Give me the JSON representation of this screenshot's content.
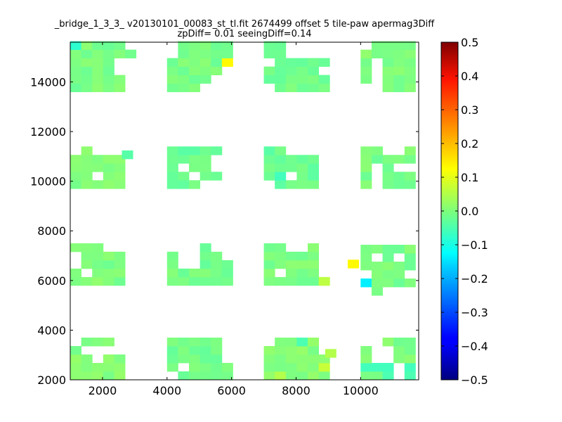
{
  "chart_data": {
    "type": "heatmap",
    "title_line1": "_bridge_1_3_3_ v20130101_00083_st_tl.fit 2674499 offset 5 tile-paw apermag3Diff",
    "title_line2": "zpDiff= 0.01 seeingDiff=0.14",
    "xlim": [
      1000,
      11800
    ],
    "ylim": [
      2000,
      15600
    ],
    "x_ticks": [
      "2000",
      "4000",
      "6000",
      "8000",
      "10000"
    ],
    "y_ticks": [
      "2000",
      "4000",
      "6000",
      "8000",
      "10000",
      "12000",
      "14000"
    ],
    "cell_size": 340,
    "colorbar": {
      "min": -0.5,
      "max": 0.5,
      "colormap": "jet",
      "ticks": [
        "0.5",
        "0.4",
        "0.3",
        "0.2",
        "0.1",
        "0.0",
        "−0.1",
        "−0.2",
        "−0.3",
        "−0.4",
        "−0.5"
      ]
    },
    "blocks": [
      {
        "x0": 1000,
        "y0": 13600,
        "cols": 6,
        "rows": 6,
        "base": -0.005,
        "missing": [
          [
            5,
            0
          ],
          [
            5,
            1
          ],
          [
            4,
            2
          ],
          [
            5,
            2
          ],
          [
            4,
            3
          ],
          [
            5,
            3
          ],
          [
            5,
            5
          ]
        ],
        "overrides": [
          [
            0,
            5,
            -0.08
          ]
        ]
      },
      {
        "x0": 4000,
        "y0": 13600,
        "cols": 6,
        "rows": 6,
        "base": -0.005,
        "missing": [
          [
            0,
            5
          ],
          [
            0,
            4
          ],
          [
            3,
            0
          ],
          [
            4,
            0
          ],
          [
            5,
            0
          ],
          [
            4,
            1
          ],
          [
            5,
            1
          ],
          [
            5,
            2
          ]
        ],
        "overrides": [
          [
            5,
            3,
            0.13
          ]
        ]
      },
      {
        "x0": 7000,
        "y0": 13600,
        "cols": 6,
        "rows": 6,
        "base": -0.01,
        "missing": [
          [
            0,
            0
          ],
          [
            2,
            5
          ],
          [
            3,
            5
          ],
          [
            4,
            5
          ],
          [
            5,
            5
          ],
          [
            2,
            4
          ],
          [
            3,
            4
          ],
          [
            4,
            4
          ],
          [
            5,
            4
          ],
          [
            0,
            3
          ],
          [
            5,
            2
          ]
        ],
        "overrides": []
      },
      {
        "x0": 10000,
        "y0": 13600,
        "cols": 5,
        "rows": 6,
        "base": 0.0,
        "missing": [
          [
            0,
            5
          ],
          [
            1,
            3
          ],
          [
            1,
            2
          ],
          [
            1,
            1
          ],
          [
            1,
            0
          ],
          [
            0,
            0
          ]
        ],
        "overrides": []
      },
      {
        "x0": 1000,
        "y0": 9700,
        "cols": 5,
        "rows": 5,
        "base": 0.0,
        "missing": [
          [
            0,
            4
          ],
          [
            2,
            4
          ],
          [
            3,
            4
          ],
          [
            2,
            1
          ],
          [
            4,
            4
          ]
        ],
        "overrides": [
          [
            4,
            4,
            -0.02
          ]
        ]
      },
      {
        "x0": 4000,
        "y0": 9700,
        "cols": 5,
        "rows": 5,
        "base": -0.02,
        "missing": [
          [
            4,
            3
          ],
          [
            4,
            2
          ],
          [
            1,
            2
          ],
          [
            2,
            1
          ],
          [
            4,
            0
          ],
          [
            3,
            0
          ]
        ],
        "overrides": []
      },
      {
        "x0": 7000,
        "y0": 9700,
        "cols": 5,
        "rows": 5,
        "base": -0.02,
        "missing": [
          [
            0,
            0
          ],
          [
            2,
            4
          ],
          [
            3,
            4
          ],
          [
            4,
            4
          ],
          [
            2,
            1
          ]
        ],
        "overrides": [
          [
            1,
            1,
            -0.06
          ]
        ]
      },
      {
        "x0": 10000,
        "y0": 9700,
        "cols": 5,
        "rows": 5,
        "base": -0.005,
        "missing": [
          [
            2,
            4
          ],
          [
            3,
            4
          ],
          [
            1,
            2
          ],
          [
            1,
            1
          ],
          [
            1,
            0
          ],
          [
            3,
            2
          ],
          [
            4,
            2
          ]
        ],
        "overrides": []
      },
      {
        "x0": 1000,
        "y0": 5800,
        "cols": 5,
        "rows": 5,
        "base": 0.0,
        "missing": [
          [
            0,
            3
          ],
          [
            0,
            2
          ],
          [
            1,
            1
          ],
          [
            3,
            4
          ],
          [
            4,
            4
          ]
        ],
        "overrides": []
      },
      {
        "x0": 4000,
        "y0": 5800,
        "cols": 6,
        "rows": 5,
        "base": -0.01,
        "missing": [
          [
            0,
            4
          ],
          [
            1,
            4
          ],
          [
            2,
            4
          ],
          [
            1,
            3
          ],
          [
            2,
            3
          ],
          [
            1,
            2
          ],
          [
            2,
            2
          ],
          [
            4,
            4
          ],
          [
            5,
            4
          ],
          [
            5,
            3
          ]
        ],
        "overrides": []
      },
      {
        "x0": 7000,
        "y0": 5800,
        "cols": 6,
        "rows": 5,
        "base": -0.005,
        "missing": [
          [
            2,
            4
          ],
          [
            3,
            4
          ],
          [
            1,
            1
          ],
          [
            5,
            4
          ],
          [
            5,
            3
          ],
          [
            5,
            2
          ],
          [
            5,
            1
          ]
        ],
        "overrides": [
          [
            5,
            0,
            0.06
          ]
        ]
      },
      {
        "x0": 10000,
        "y0": 5400,
        "cols": 5,
        "rows": 6,
        "base": -0.005,
        "missing": [
          [
            0,
            0
          ],
          [
            2,
            0
          ],
          [
            3,
            0
          ],
          [
            4,
            0
          ],
          [
            1,
            4
          ],
          [
            3,
            4
          ],
          [
            0,
            2
          ],
          [
            4,
            2
          ]
        ],
        "overrides": [
          [
            0,
            2,
            -0.07
          ],
          [
            0,
            1,
            -0.14
          ]
        ]
      },
      {
        "x0": 1000,
        "y0": 2000,
        "cols": 5,
        "rows": 5,
        "base": 0.005,
        "missing": [
          [
            1,
            3
          ],
          [
            2,
            3
          ],
          [
            3,
            3
          ],
          [
            4,
            3
          ],
          [
            2,
            2
          ],
          [
            0,
            4
          ],
          [
            4,
            4
          ]
        ],
        "overrides": [
          [
            0,
            4,
            0.015
          ]
        ]
      },
      {
        "x0": 4000,
        "y0": 2000,
        "cols": 6,
        "rows": 5,
        "base": -0.01,
        "missing": [
          [
            0,
            0
          ],
          [
            5,
            4
          ],
          [
            5,
            3
          ],
          [
            5,
            2
          ],
          [
            1,
            1
          ]
        ],
        "overrides": []
      },
      {
        "x0": 7000,
        "y0": 2000,
        "cols": 6,
        "rows": 5,
        "base": 0.01,
        "missing": [
          [
            0,
            4
          ],
          [
            5,
            3
          ],
          [
            5,
            4
          ]
        ],
        "overrides": [
          [
            3,
            4,
            -0.05
          ],
          [
            5,
            1,
            0.07
          ],
          [
            4,
            0,
            0.02
          ],
          [
            1,
            0,
            0.05
          ]
        ]
      },
      {
        "x0": 10000,
        "y0": 2000,
        "cols": 5,
        "rows": 5,
        "base": 0.0,
        "missing": [
          [
            0,
            4
          ],
          [
            1,
            4
          ],
          [
            1,
            3
          ],
          [
            1,
            2
          ],
          [
            2,
            2
          ],
          [
            2,
            3
          ],
          [
            3,
            1
          ],
          [
            3,
            0
          ]
        ],
        "overrides": [
          [
            0,
            1,
            -0.06
          ],
          [
            1,
            1,
            -0.06
          ],
          [
            2,
            1,
            -0.06
          ],
          [
            2,
            0,
            -0.05
          ],
          [
            3,
            1,
            -0.06
          ],
          [
            4,
            1,
            -0.06
          ],
          [
            4,
            0,
            -0.05
          ]
        ]
      }
    ],
    "extra_cells": [
      {
        "x": 9600,
        "y": 6500,
        "v": 0.13
      },
      {
        "x": 2600,
        "y": 10900,
        "v": -0.04
      },
      {
        "x": 8900,
        "y": 2900,
        "v": 0.05
      }
    ]
  }
}
